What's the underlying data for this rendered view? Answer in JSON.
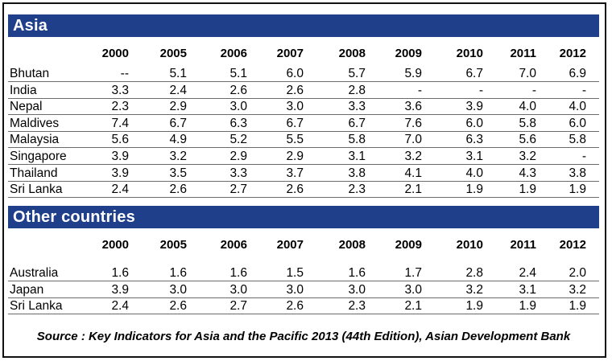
{
  "asia": {
    "title": "Asia",
    "years": [
      "2000",
      "2005",
      "2006",
      "2007",
      "2008",
      "2009",
      "2010",
      "2011",
      "2012"
    ],
    "rows": [
      {
        "country": "Bhutan",
        "values": [
          "--",
          "5.1",
          "5.1",
          "6.0",
          "5.7",
          "5.9",
          "6.7",
          "7.0",
          "6.9"
        ]
      },
      {
        "country": "India",
        "values": [
          "3.3",
          "2.4",
          "2.6",
          "2.6",
          "2.8",
          "-",
          "-",
          "-",
          "-"
        ]
      },
      {
        "country": "Nepal",
        "values": [
          "2.3",
          "2.9",
          "3.0",
          "3.0",
          "3.3",
          "3.6",
          "3.9",
          "4.0",
          "4.0"
        ]
      },
      {
        "country": "Maldives",
        "values": [
          "7.4",
          "6.7",
          "6.3",
          "6.7",
          "6.7",
          "7.6",
          "6.0",
          "5.8",
          "6.0"
        ]
      },
      {
        "country": "Malaysia",
        "values": [
          "5.6",
          "4.9",
          "5.2",
          "5.5",
          "5.8",
          "7.0",
          "6.3",
          "5.6",
          "5.8"
        ]
      },
      {
        "country": "Singapore",
        "values": [
          "3.9",
          "3.2",
          "2.9",
          "2.9",
          "3.1",
          "3.2",
          "3.1",
          "3.2",
          "-"
        ]
      },
      {
        "country": "Thailand",
        "values": [
          "3.9",
          "3.5",
          "3.3",
          "3.7",
          "3.8",
          "4.1",
          "4.0",
          "4.3",
          "3.8"
        ]
      },
      {
        "country": "Sri Lanka",
        "values": [
          "2.4",
          "2.6",
          "2.7",
          "2.6",
          "2.3",
          "2.1",
          "1.9",
          "1.9",
          "1.9"
        ]
      }
    ]
  },
  "other": {
    "title": "Other countries",
    "years": [
      "2000",
      "2005",
      "2006",
      "2007",
      "2008",
      "2009",
      "2010",
      "2011",
      "2012"
    ],
    "rows": [
      {
        "country": "Australia",
        "values": [
          "1.6",
          "1.6",
          "1.6",
          "1.5",
          "1.6",
          "1.7",
          "2.8",
          "2.4",
          "2.0"
        ]
      },
      {
        "country": "Japan",
        "values": [
          "3.9",
          "3.0",
          "3.0",
          "3.0",
          "3.0",
          "3.0",
          "3.2",
          "3.1",
          "3.2"
        ]
      },
      {
        "country": "Sri Lanka",
        "values": [
          "2.4",
          "2.6",
          "2.7",
          "2.6",
          "2.3",
          "2.1",
          "1.9",
          "1.9",
          "1.9"
        ]
      }
    ]
  },
  "source": "Source : Key Indicators for Asia and the Pacific 2013 (44th Edition), Asian Development Bank",
  "colors": {
    "header_bg": "#1f3f8a",
    "header_text": "#ffffff",
    "rule": "#6b6b6b"
  }
}
